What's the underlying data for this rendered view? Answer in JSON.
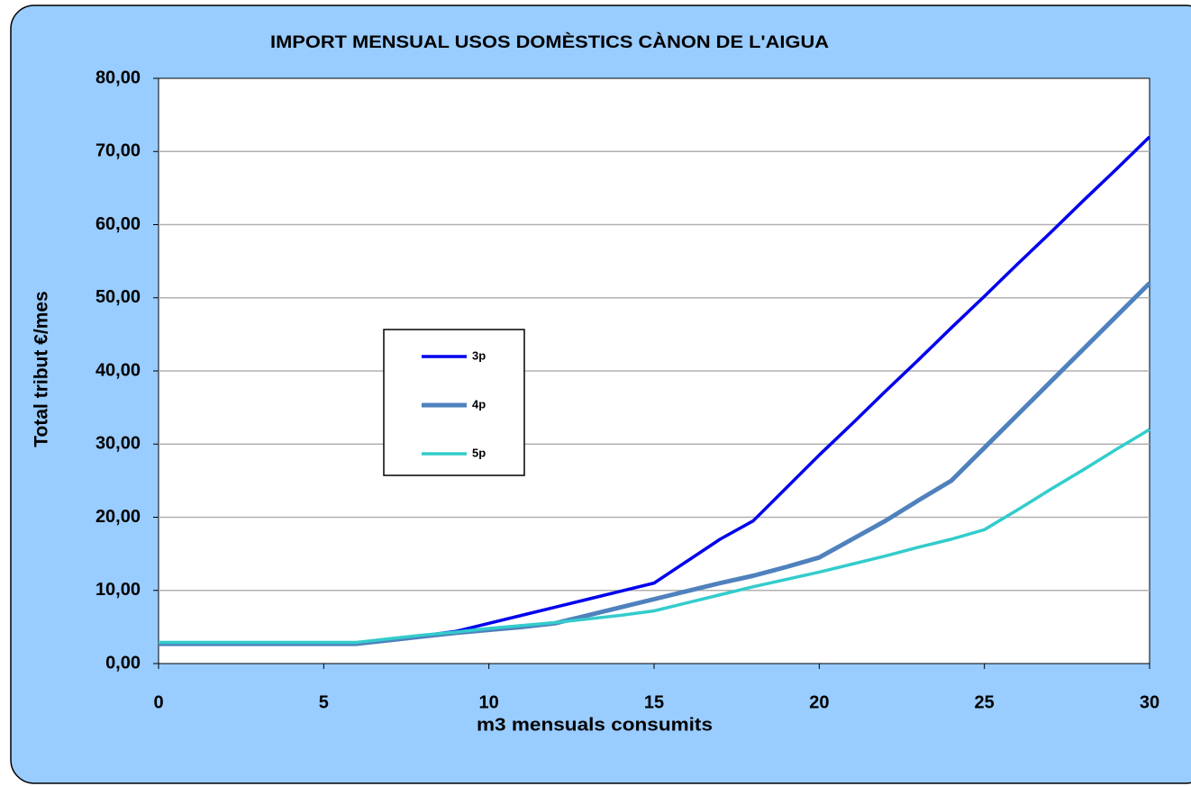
{
  "chart_data": {
    "type": "line",
    "title": "IMPORT MENSUAL USOS DOMÈSTICS CÀNON DE L'AIGUA",
    "x_label": "m3 mensuals consumits",
    "y_label": "Total tribut €/mes",
    "x": [
      0,
      1,
      2,
      3,
      4,
      5,
      6,
      7,
      8,
      9,
      10,
      11,
      12,
      13,
      14,
      15,
      16,
      17,
      18,
      19,
      20,
      21,
      22,
      23,
      24,
      25,
      26,
      27,
      28,
      29,
      30
    ],
    "series": [
      {
        "name": "3p",
        "color": "#0000ee",
        "values": [
          2.8,
          2.8,
          2.8,
          2.8,
          2.8,
          2.8,
          2.8,
          3.3,
          3.8,
          4.4,
          5.5,
          6.6,
          7.7,
          8.8,
          9.9,
          11,
          14,
          17,
          19.5,
          24,
          28.5,
          32.8,
          37.2,
          41.5,
          45.9,
          50.2,
          54.6,
          58.9,
          63.3,
          67.6,
          72
        ]
      },
      {
        "name": "4p",
        "color": "#4f81bd",
        "values": [
          2.7,
          2.7,
          2.7,
          2.7,
          2.7,
          2.7,
          2.7,
          3.2,
          3.7,
          4.2,
          4.6,
          5.0,
          5.5,
          6.6,
          7.7,
          8.8,
          9.9,
          11,
          12,
          13.2,
          14.5,
          17,
          19.5,
          22.3,
          25,
          29.5,
          34,
          38.5,
          43,
          47.5,
          52
        ]
      },
      {
        "name": "5p",
        "color": "#33cccc",
        "values": [
          2.9,
          2.9,
          2.9,
          2.9,
          2.9,
          2.9,
          2.9,
          3.4,
          3.9,
          4.3,
          4.8,
          5.2,
          5.6,
          6.1,
          6.6,
          7.2,
          8.3,
          9.4,
          10.5,
          11.5,
          12.5,
          13.6,
          14.7,
          15.9,
          17,
          18.3,
          21,
          23.8,
          26.5,
          29.3,
          32
        ]
      }
    ],
    "xlim": [
      0,
      30
    ],
    "xticks": [
      0,
      5,
      10,
      15,
      20,
      25,
      30
    ],
    "ylim": [
      0,
      80
    ],
    "yticks": [
      {
        "value": 0,
        "label": "0,00"
      },
      {
        "value": 10,
        "label": "10,00"
      },
      {
        "value": 20,
        "label": "20,00"
      },
      {
        "value": 30,
        "label": "30,00"
      },
      {
        "value": 40,
        "label": "40,00"
      },
      {
        "value": 50,
        "label": "50,00"
      },
      {
        "value": 60,
        "label": "60,00"
      },
      {
        "value": 70,
        "label": "70,00"
      },
      {
        "value": 80,
        "label": "80,00"
      }
    ],
    "grid": true
  }
}
